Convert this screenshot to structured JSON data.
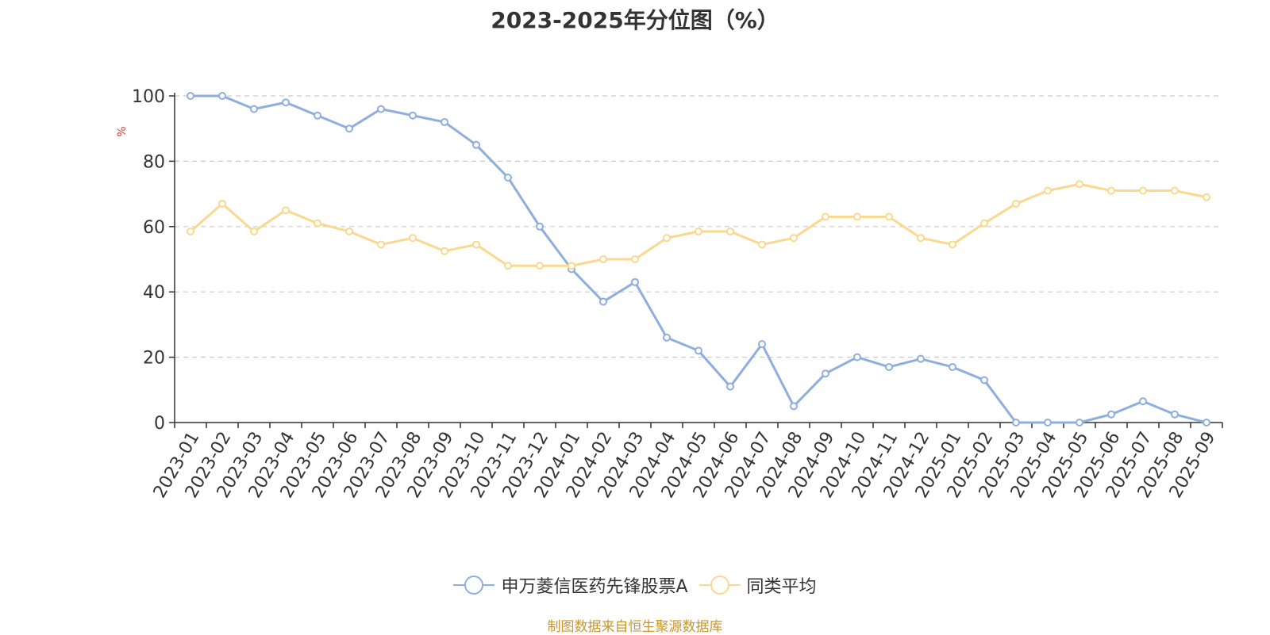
{
  "chart_data": {
    "type": "line",
    "title": "2023-2025年分位图（%）",
    "ylabel": "%",
    "ylim": [
      0,
      100
    ],
    "yticks": [
      0,
      20,
      40,
      60,
      80,
      100
    ],
    "grid": "horizontal dashed",
    "legend": "bottom-center",
    "categories": [
      "2023-01",
      "2023-02",
      "2023-03",
      "2023-04",
      "2023-05",
      "2023-06",
      "2023-07",
      "2023-08",
      "2023-09",
      "2023-10",
      "2023-11",
      "2023-12",
      "2024-01",
      "2024-02",
      "2024-03",
      "2024-04",
      "2024-05",
      "2024-06",
      "2024-07",
      "2024-08",
      "2024-09",
      "2024-10",
      "2024-11",
      "2024-12",
      "2025-01",
      "2025-02",
      "2025-03",
      "2025-04",
      "2025-05",
      "2025-06",
      "2025-07",
      "2025-08",
      "2025-09"
    ],
    "series": [
      {
        "name": "申万菱信医药先锋股票A",
        "color": "#8eaedd",
        "values": [
          100,
          100,
          96,
          98,
          94,
          90,
          96,
          94,
          92,
          85,
          75,
          60,
          47,
          37,
          43,
          26,
          22,
          11,
          24,
          5,
          15,
          20,
          17,
          19.5,
          17,
          13,
          0,
          0,
          0,
          2.5,
          6.5,
          2.5,
          0
        ]
      },
      {
        "name": "同类平均",
        "color": "#fbd88f",
        "values": [
          58.5,
          67,
          58.5,
          65,
          61,
          58.5,
          54.5,
          56.5,
          52.5,
          54.5,
          48,
          48,
          48,
          50,
          50,
          56.5,
          58.5,
          58.5,
          54.5,
          56.5,
          63,
          63,
          63,
          56.5,
          54.5,
          61,
          67,
          71,
          73,
          71,
          71,
          71,
          69
        ]
      }
    ]
  },
  "source_note": "制图数据来自恒生聚源数据库"
}
